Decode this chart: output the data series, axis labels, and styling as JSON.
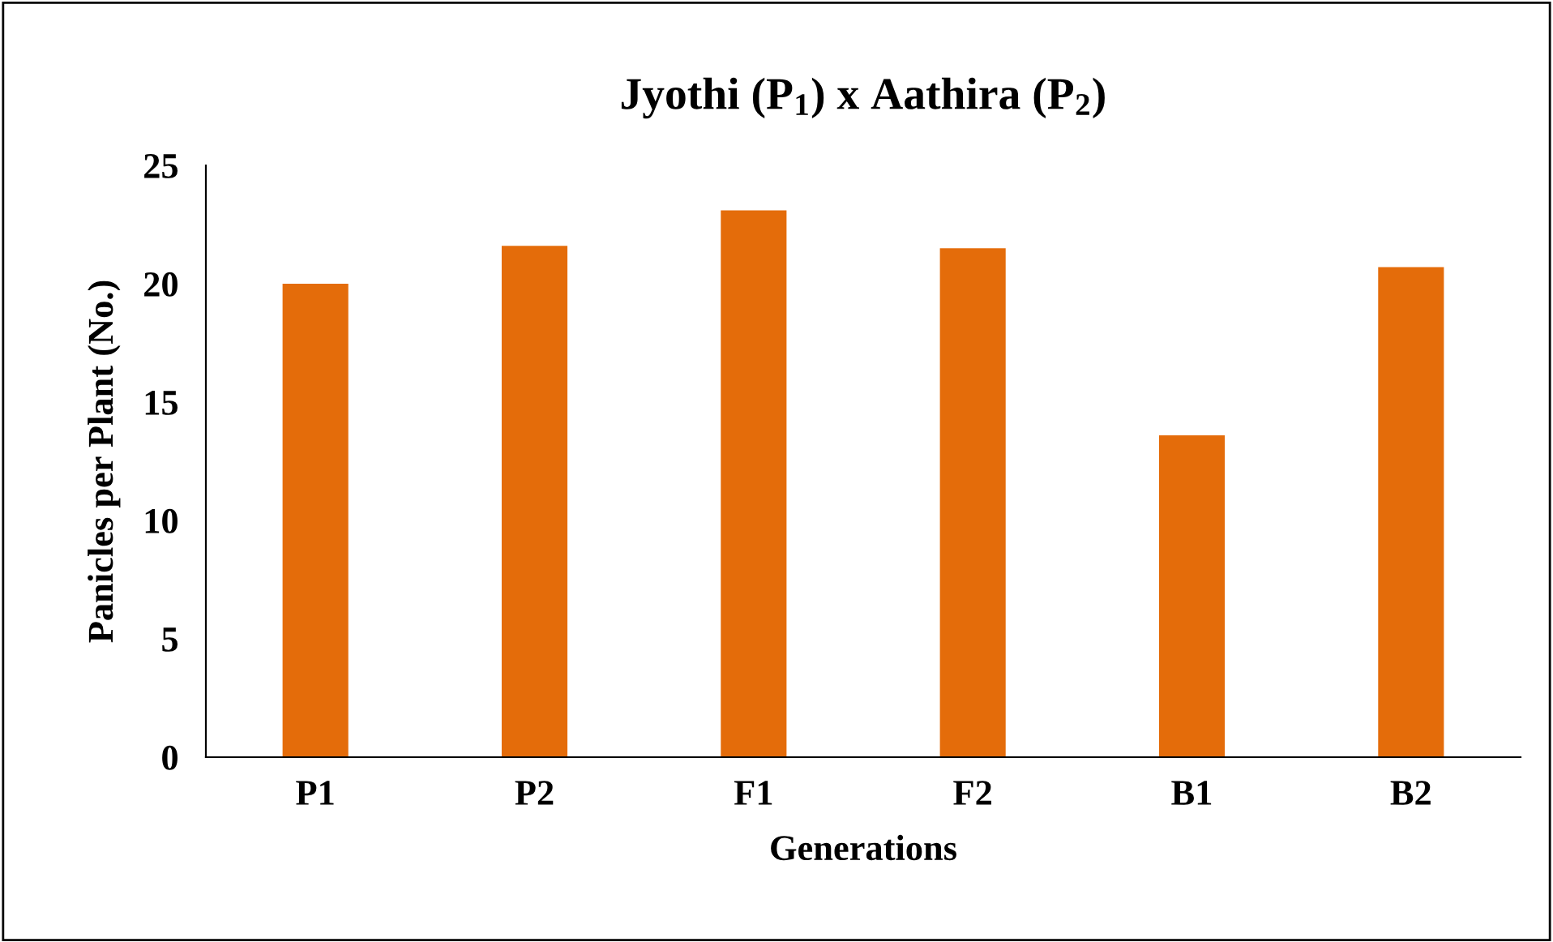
{
  "chart_data": {
    "type": "bar",
    "title": "Jyothi (P$_{1}$) x Aathira (P$_{2}$)",
    "xlabel": "Generations",
    "ylabel": "Panicles per Plant (No.)",
    "categories": [
      "P1",
      "P2",
      "F1",
      "F2",
      "B1",
      "B2"
    ],
    "values": [
      20.0,
      21.6,
      23.1,
      21.5,
      13.6,
      20.7
    ],
    "color": "#e46c0a",
    "ylim": [
      0,
      25
    ],
    "yticks": [
      0,
      5,
      10,
      15,
      20,
      25
    ],
    "grid": false
  }
}
